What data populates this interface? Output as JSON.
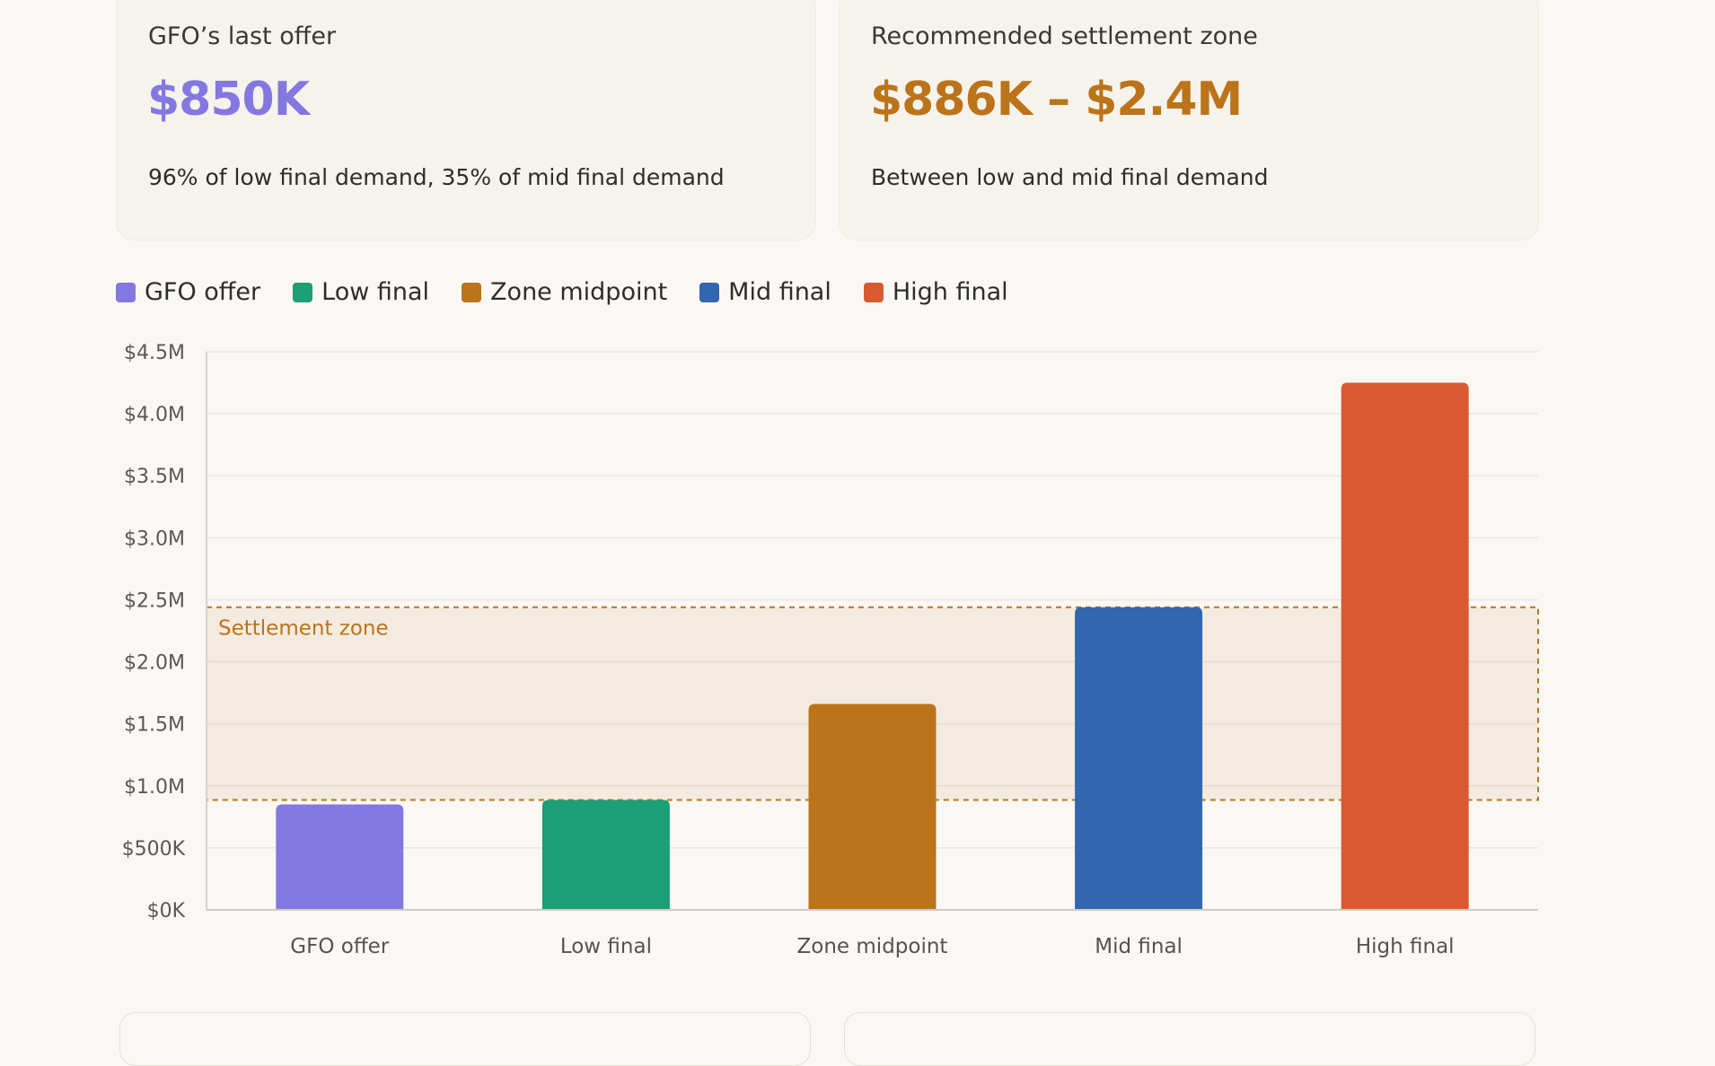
{
  "cards": {
    "gfo": {
      "label": "GFO’s last offer",
      "value": "$850K",
      "note": "96% of low final demand, 35% of mid final demand",
      "color": "#8378df"
    },
    "zone": {
      "label": "Recommended settlement zone",
      "value": "$886K – $2.4M",
      "note": "Between low and mid final demand",
      "color": "#bb7419"
    }
  },
  "legend": [
    {
      "label": "GFO offer",
      "color": "#8378df"
    },
    {
      "label": "Low final",
      "color": "#1c9e76"
    },
    {
      "label": "Zone midpoint",
      "color": "#bb7419"
    },
    {
      "label": "Mid final",
      "color": "#3366ae"
    },
    {
      "label": "High final",
      "color": "#d95a31"
    }
  ],
  "chart_data": {
    "type": "bar",
    "categories": [
      "GFO offer",
      "Low final",
      "Zone midpoint",
      "Mid final",
      "High final"
    ],
    "values": [
      850000,
      886000,
      1660000,
      2440000,
      4250000
    ],
    "colors": [
      "#8378df",
      "#1c9e76",
      "#bb7419",
      "#3366ae",
      "#d95a31"
    ],
    "ylim": [
      0,
      4500000
    ],
    "yticks": [
      0,
      500000,
      1000000,
      1500000,
      2000000,
      2500000,
      3000000,
      3500000,
      4000000,
      4500000
    ],
    "ytick_labels": [
      "$0K",
      "$500K",
      "$1.0M",
      "$1.5M",
      "$2.0M",
      "$2.5M",
      "$3.0M",
      "$3.5M",
      "$4.0M",
      "$4.5M"
    ],
    "grid": true,
    "legend": "top-left",
    "band": {
      "label": "Settlement zone",
      "from": 886000,
      "to": 2440000,
      "color": "#bb7419"
    }
  }
}
